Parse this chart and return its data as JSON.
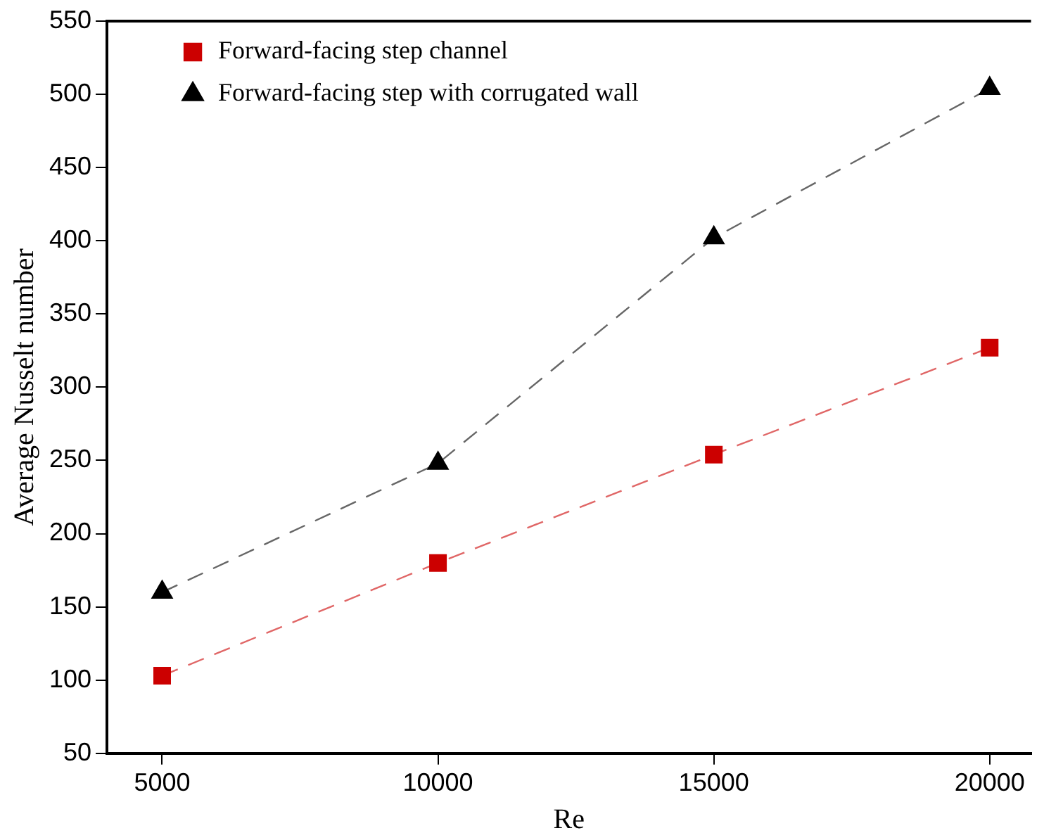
{
  "chart_data": {
    "type": "line",
    "xlabel": "Re",
    "ylabel": "Average Nusselt number",
    "x": [
      5000,
      10000,
      15000,
      20000
    ],
    "series": [
      {
        "name": "Forward-facing step channel",
        "color": "#cc0000",
        "values": [
          103,
          180,
          254,
          327
        ],
        "marker": "square"
      },
      {
        "name": "Forward-facing step with corrugated wall",
        "color": "#000000",
        "values": [
          160,
          248,
          402,
          504
        ],
        "marker": "triangle"
      }
    ],
    "xlim": [
      4000,
      20750
    ],
    "xticks": [
      5000,
      10000,
      15000,
      20000
    ],
    "ylim": [
      50,
      550
    ],
    "yticks": [
      50,
      100,
      150,
      200,
      250,
      300,
      350,
      400,
      450,
      500,
      550
    ],
    "line_style": "dashed",
    "grid": false,
    "legend": "top left"
  }
}
